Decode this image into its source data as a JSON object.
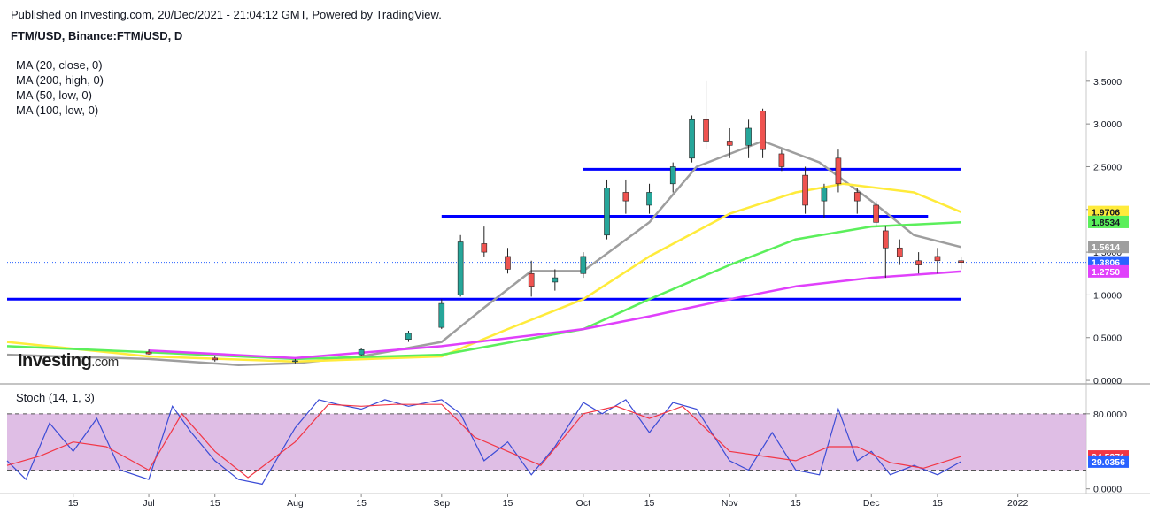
{
  "header": {
    "published": "Published on Investing.com, 20/Dec/2021 - 21:04:12 GMT, Powered by TradingView.",
    "symbol": "FTM/USD, Binance:FTM/USD, D"
  },
  "indicators": [
    {
      "label": "MA (20, close, 0)",
      "color": "#9e9e9e"
    },
    {
      "label": "MA (200, high, 0)",
      "color": "#ffeb3b"
    },
    {
      "label": "MA (50, low, 0)",
      "color": "#5bef5b"
    },
    {
      "label": "MA (100, low, 0)",
      "color": "#e040fb"
    }
  ],
  "watermark": {
    "brand": "Investing",
    "suffix": ".com"
  },
  "stoch_label": "Stoch (14, 1, 3)",
  "chart_data": [
    {
      "type": "candlestick",
      "title": "FTM/USD, Binance:FTM/USD, D",
      "y_ticks": [
        "3.5000",
        "3.0000",
        "2.5000",
        "2.0000",
        "1.5000",
        "1.0000",
        "0.5000",
        "0.0000"
      ],
      "y_tick_values": [
        3.5,
        3.0,
        2.5,
        2.0,
        1.5,
        1.0,
        0.5,
        0.0
      ],
      "ylim": [
        -0.02,
        3.85
      ],
      "x_ticks": [
        "15",
        "Jul",
        "15",
        "Aug",
        "15",
        "Sep",
        "15",
        "Oct",
        "15",
        "Nov",
        "15",
        "Dec",
        "15",
        "2022"
      ],
      "price_labels": [
        {
          "text": "1.9706",
          "value": 1.9706,
          "bg": "#ffeb3b",
          "fg": "#131722"
        },
        {
          "text": "1.8534",
          "value": 1.8534,
          "bg": "#5bef5b",
          "fg": "#131722"
        },
        {
          "text": "1.5614",
          "value": 1.5614,
          "bg": "#9e9e9e",
          "fg": "#ffffff"
        },
        {
          "text": "1.3806",
          "value": 1.3806,
          "bg": "#2962ff",
          "fg": "#ffffff"
        },
        {
          "text": "1.2750",
          "value": 1.275,
          "bg": "#e040fb",
          "fg": "#ffffff"
        }
      ],
      "horizontal_levels": [
        {
          "value": 2.47,
          "x_from": "2021-10-01",
          "x_to": "2021-12-20",
          "color": "#0000ff"
        },
        {
          "value": 1.92,
          "x_from": "2021-09-01",
          "x_to": "2021-12-13",
          "color": "#0000ff"
        },
        {
          "value": 0.95,
          "x_from": "2021-06-01",
          "x_to": "2021-12-20",
          "color": "#0000ff"
        }
      ],
      "last_price": 1.3806,
      "series": [
        {
          "name": "MA (20, close, 0)",
          "color": "#9e9e9e",
          "points": [
            [
              "2021-06-01",
              0.3
            ],
            [
              "2021-07-01",
              0.25
            ],
            [
              "2021-07-20",
              0.18
            ],
            [
              "2021-08-01",
              0.2
            ],
            [
              "2021-08-15",
              0.28
            ],
            [
              "2021-09-01",
              0.45
            ],
            [
              "2021-09-10",
              0.85
            ],
            [
              "2021-09-20",
              1.28
            ],
            [
              "2021-10-01",
              1.28
            ],
            [
              "2021-10-15",
              1.85
            ],
            [
              "2021-10-25",
              2.5
            ],
            [
              "2021-11-08",
              2.8
            ],
            [
              "2021-11-20",
              2.55
            ],
            [
              "2021-12-01",
              2.1
            ],
            [
              "2021-12-10",
              1.7
            ],
            [
              "2021-12-20",
              1.56
            ]
          ]
        },
        {
          "name": "MA (200, high, 0)",
          "color": "#ffeb3b",
          "points": [
            [
              "2021-06-01",
              0.45
            ],
            [
              "2021-07-01",
              0.28
            ],
            [
              "2021-08-01",
              0.22
            ],
            [
              "2021-09-01",
              0.28
            ],
            [
              "2021-09-15",
              0.6
            ],
            [
              "2021-10-01",
              0.95
            ],
            [
              "2021-10-15",
              1.45
            ],
            [
              "2021-11-01",
              1.95
            ],
            [
              "2021-11-15",
              2.2
            ],
            [
              "2021-11-25",
              2.3
            ],
            [
              "2021-12-10",
              2.2
            ],
            [
              "2021-12-20",
              1.97
            ]
          ]
        },
        {
          "name": "MA (50, low, 0)",
          "color": "#5bef5b",
          "points": [
            [
              "2021-06-01",
              0.4
            ],
            [
              "2021-07-01",
              0.33
            ],
            [
              "2021-08-01",
              0.25
            ],
            [
              "2021-09-01",
              0.3
            ],
            [
              "2021-10-01",
              0.6
            ],
            [
              "2021-10-15",
              0.95
            ],
            [
              "2021-11-01",
              1.35
            ],
            [
              "2021-11-15",
              1.65
            ],
            [
              "2021-12-01",
              1.8
            ],
            [
              "2021-12-20",
              1.85
            ]
          ]
        },
        {
          "name": "MA (100, low, 0)",
          "color": "#e040fb",
          "points": [
            [
              "2021-07-01",
              0.35
            ],
            [
              "2021-08-01",
              0.26
            ],
            [
              "2021-09-01",
              0.4
            ],
            [
              "2021-10-01",
              0.6
            ],
            [
              "2021-10-15",
              0.75
            ],
            [
              "2021-11-01",
              0.95
            ],
            [
              "2021-11-15",
              1.1
            ],
            [
              "2021-12-01",
              1.2
            ],
            [
              "2021-12-20",
              1.275
            ]
          ]
        }
      ],
      "candles": [
        [
          "2021-07-01",
          0.33,
          0.36,
          0.3,
          0.31
        ],
        [
          "2021-07-15",
          0.26,
          0.28,
          0.22,
          0.24
        ],
        [
          "2021-08-01",
          0.22,
          0.25,
          0.2,
          0.23
        ],
        [
          "2021-08-15",
          0.3,
          0.38,
          0.28,
          0.36
        ],
        [
          "2021-08-25",
          0.48,
          0.58,
          0.45,
          0.55
        ],
        [
          "2021-09-01",
          0.62,
          0.95,
          0.6,
          0.9
        ],
        [
          "2021-09-05",
          1.0,
          1.7,
          0.98,
          1.62
        ],
        [
          "2021-09-10",
          1.6,
          1.8,
          1.45,
          1.5
        ],
        [
          "2021-09-15",
          1.45,
          1.55,
          1.25,
          1.3
        ],
        [
          "2021-09-20",
          1.25,
          1.4,
          0.98,
          1.1
        ],
        [
          "2021-09-25",
          1.15,
          1.3,
          1.05,
          1.2
        ],
        [
          "2021-10-01",
          1.25,
          1.5,
          1.2,
          1.45
        ],
        [
          "2021-10-06",
          1.7,
          2.35,
          1.65,
          2.25
        ],
        [
          "2021-10-10",
          2.2,
          2.35,
          1.95,
          2.1
        ],
        [
          "2021-10-15",
          2.05,
          2.3,
          1.95,
          2.2
        ],
        [
          "2021-10-20",
          2.3,
          2.55,
          2.2,
          2.5
        ],
        [
          "2021-10-24",
          2.6,
          3.1,
          2.55,
          3.05
        ],
        [
          "2021-10-27",
          3.05,
          3.5,
          2.7,
          2.8
        ],
        [
          "2021-11-01",
          2.8,
          2.95,
          2.6,
          2.75
        ],
        [
          "2021-11-05",
          2.75,
          3.05,
          2.6,
          2.95
        ],
        [
          "2021-11-08",
          3.15,
          3.18,
          2.6,
          2.7
        ],
        [
          "2021-11-12",
          2.65,
          2.7,
          2.45,
          2.5
        ],
        [
          "2021-11-17",
          2.4,
          2.5,
          1.95,
          2.05
        ],
        [
          "2021-11-21",
          2.1,
          2.3,
          1.9,
          2.25
        ],
        [
          "2021-11-24",
          2.6,
          2.7,
          2.2,
          2.3
        ],
        [
          "2021-11-28",
          2.2,
          2.25,
          1.95,
          2.1
        ],
        [
          "2021-12-02",
          2.05,
          2.1,
          1.8,
          1.85
        ],
        [
          "2021-12-04",
          1.75,
          1.8,
          1.2,
          1.55
        ],
        [
          "2021-12-07",
          1.55,
          1.65,
          1.35,
          1.45
        ],
        [
          "2021-12-11",
          1.4,
          1.5,
          1.25,
          1.35
        ],
        [
          "2021-12-15",
          1.45,
          1.55,
          1.25,
          1.4
        ],
        [
          "2021-12-20",
          1.4,
          1.45,
          1.3,
          1.38
        ]
      ]
    },
    {
      "type": "line",
      "title": "Stoch (14, 1, 3)",
      "y_ticks": [
        "80.0000",
        "0.0000"
      ],
      "y_tick_values": [
        80,
        0
      ],
      "ylim": [
        -5,
        110
      ],
      "band": [
        20,
        80
      ],
      "band_color": "#d9b3e0",
      "price_labels": [
        {
          "text": "34.5371",
          "value": 34.5371,
          "bg": "#f23645",
          "fg": "#ffffff"
        },
        {
          "text": "29.0356",
          "value": 29.0356,
          "bg": "#2962ff",
          "fg": "#ffffff"
        }
      ],
      "series": [
        {
          "name": "%K",
          "color": "#3b4cd6",
          "points": [
            [
              "2021-06-01",
              30
            ],
            [
              "2021-06-05",
              10
            ],
            [
              "2021-06-10",
              70
            ],
            [
              "2021-06-15",
              40
            ],
            [
              "2021-06-20",
              75
            ],
            [
              "2021-06-25",
              20
            ],
            [
              "2021-07-01",
              10
            ],
            [
              "2021-07-06",
              88
            ],
            [
              "2021-07-10",
              60
            ],
            [
              "2021-07-15",
              30
            ],
            [
              "2021-07-20",
              10
            ],
            [
              "2021-07-25",
              5
            ],
            [
              "2021-08-01",
              65
            ],
            [
              "2021-08-06",
              95
            ],
            [
              "2021-08-10",
              90
            ],
            [
              "2021-08-15",
              85
            ],
            [
              "2021-08-20",
              95
            ],
            [
              "2021-08-25",
              88
            ],
            [
              "2021-09-01",
              95
            ],
            [
              "2021-09-05",
              80
            ],
            [
              "2021-09-10",
              30
            ],
            [
              "2021-09-15",
              50
            ],
            [
              "2021-09-20",
              15
            ],
            [
              "2021-09-25",
              45
            ],
            [
              "2021-10-01",
              92
            ],
            [
              "2021-10-05",
              80
            ],
            [
              "2021-10-10",
              95
            ],
            [
              "2021-10-15",
              60
            ],
            [
              "2021-10-20",
              92
            ],
            [
              "2021-10-25",
              85
            ],
            [
              "2021-11-01",
              30
            ],
            [
              "2021-11-05",
              20
            ],
            [
              "2021-11-10",
              60
            ],
            [
              "2021-11-15",
              20
            ],
            [
              "2021-11-20",
              15
            ],
            [
              "2021-11-24",
              85
            ],
            [
              "2021-11-28",
              30
            ],
            [
              "2021-12-01",
              40
            ],
            [
              "2021-12-05",
              15
            ],
            [
              "2021-12-10",
              25
            ],
            [
              "2021-12-15",
              15
            ],
            [
              "2021-12-20",
              29
            ]
          ]
        },
        {
          "name": "%D",
          "color": "#f23645",
          "points": [
            [
              "2021-06-01",
              25
            ],
            [
              "2021-06-08",
              35
            ],
            [
              "2021-06-15",
              50
            ],
            [
              "2021-06-22",
              45
            ],
            [
              "2021-07-01",
              20
            ],
            [
              "2021-07-08",
              80
            ],
            [
              "2021-07-15",
              40
            ],
            [
              "2021-07-22",
              12
            ],
            [
              "2021-08-01",
              50
            ],
            [
              "2021-08-08",
              90
            ],
            [
              "2021-08-15",
              88
            ],
            [
              "2021-08-22",
              90
            ],
            [
              "2021-09-01",
              90
            ],
            [
              "2021-09-08",
              55
            ],
            [
              "2021-09-15",
              40
            ],
            [
              "2021-09-22",
              25
            ],
            [
              "2021-10-01",
              80
            ],
            [
              "2021-10-08",
              88
            ],
            [
              "2021-10-15",
              75
            ],
            [
              "2021-10-22",
              88
            ],
            [
              "2021-11-01",
              40
            ],
            [
              "2021-11-08",
              35
            ],
            [
              "2021-11-15",
              30
            ],
            [
              "2021-11-22",
              45
            ],
            [
              "2021-11-28",
              45
            ],
            [
              "2021-12-05",
              28
            ],
            [
              "2021-12-12",
              22
            ],
            [
              "2021-12-20",
              34.5
            ]
          ]
        }
      ]
    }
  ]
}
